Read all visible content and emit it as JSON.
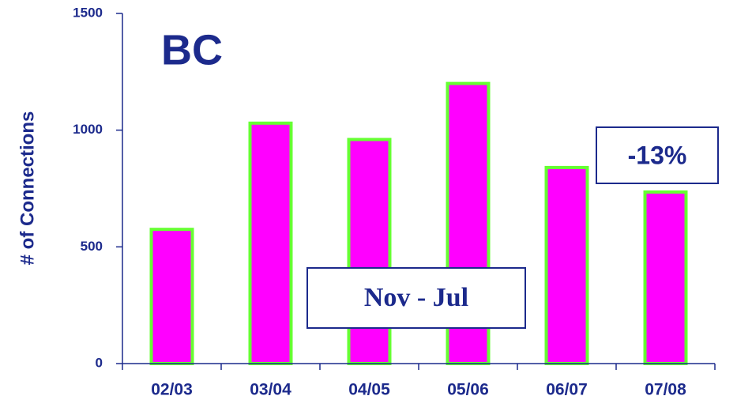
{
  "chart_data": {
    "type": "bar",
    "ylabel": "# of Connections",
    "categories": [
      "02/03",
      "03/04",
      "04/05",
      "05/06",
      "06/07",
      "07/08"
    ],
    "values": [
      575,
      1030,
      960,
      1200,
      840,
      735
    ],
    "color": "#ff00ff",
    "edge_color": "#66ff33",
    "ylim": [
      0,
      1500
    ],
    "yticks": [
      0,
      500,
      1000,
      1500
    ],
    "grid": false,
    "annotations": [
      "BC",
      "Nov - Jul",
      "-13%"
    ]
  }
}
